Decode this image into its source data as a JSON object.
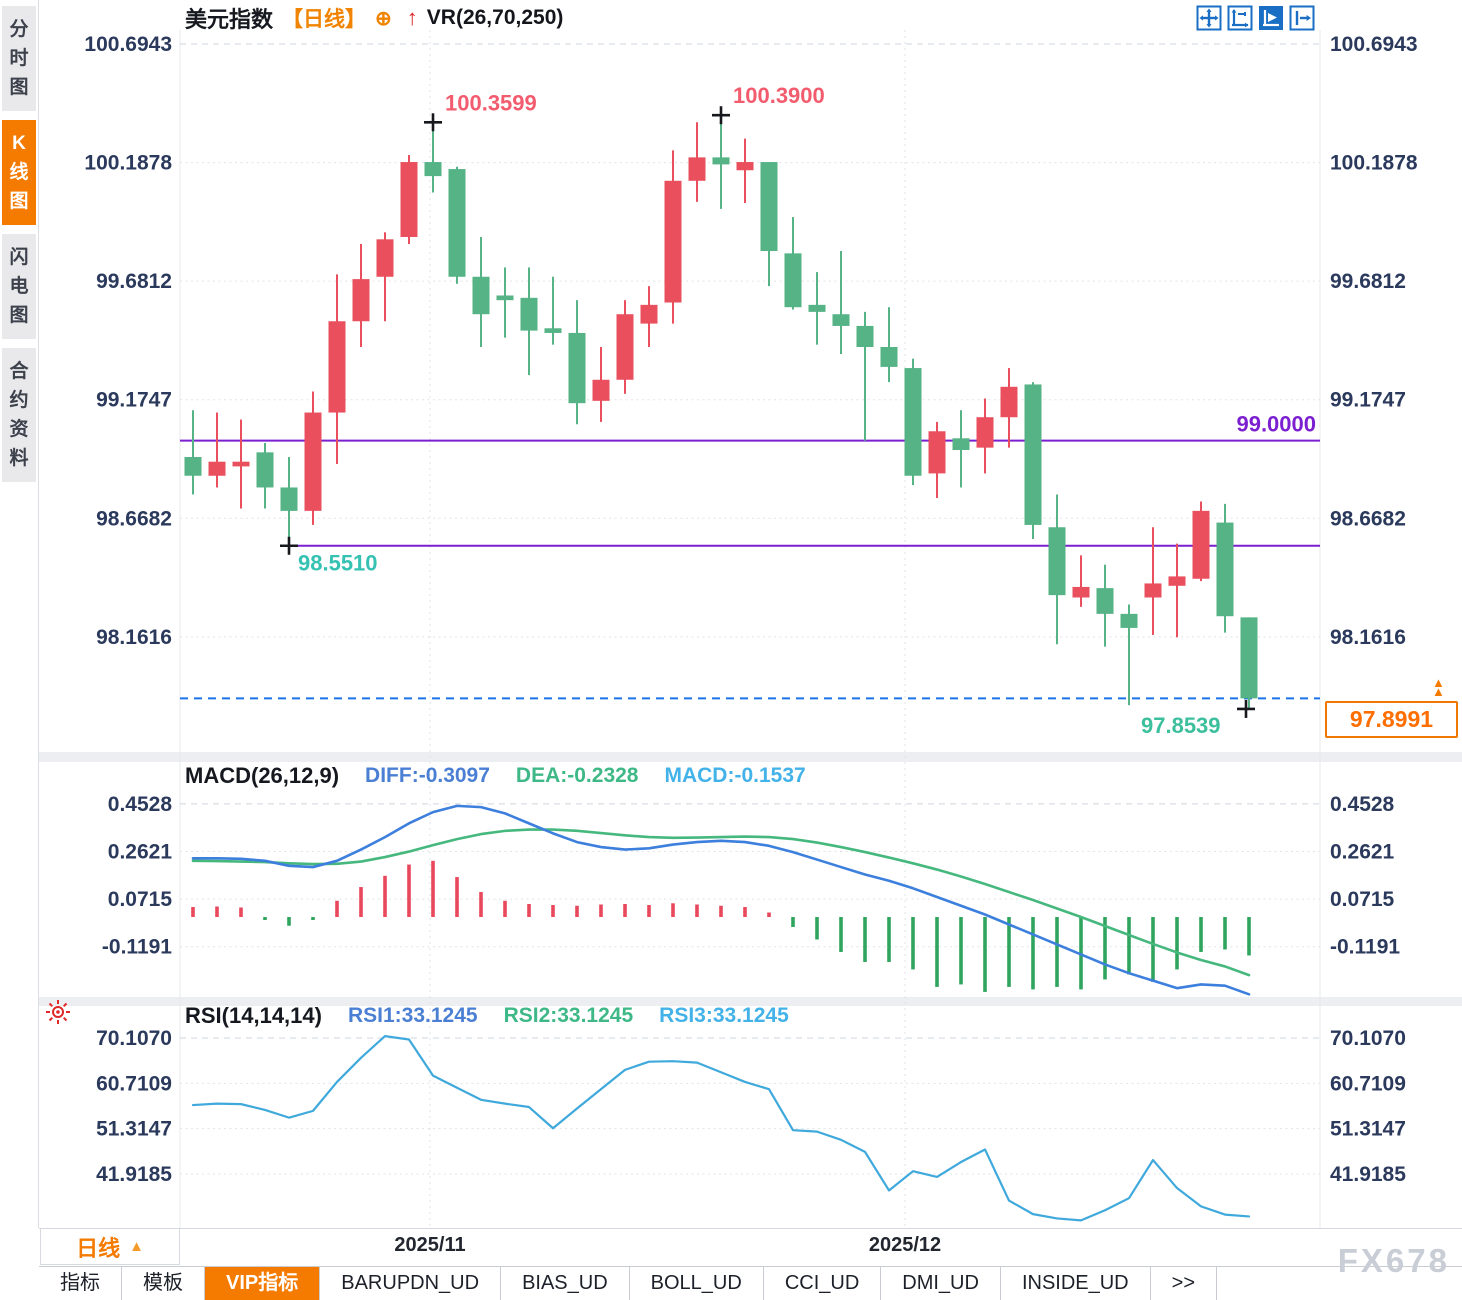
{
  "header": {
    "symbol": "美元指数",
    "period_tag": "【日线】",
    "target_icon": "⊕",
    "up_arrow_icon": "↑",
    "overlay_indicator": "VR(26,70,250)"
  },
  "toolbar": {
    "icons": [
      {
        "name": "pan-crosshair-icon",
        "active": false
      },
      {
        "name": "axis-range-icon",
        "active": false
      },
      {
        "name": "axis-play-icon",
        "active": true
      },
      {
        "name": "goto-latest-icon",
        "active": false
      }
    ]
  },
  "sidebar": {
    "items": [
      {
        "label": "分时图",
        "active": false
      },
      {
        "label": "K线图",
        "active": true
      },
      {
        "label": "闪电图",
        "active": false
      },
      {
        "label": "合约资料",
        "active": false
      }
    ]
  },
  "main_chart": {
    "y_axis": [
      "100.6943",
      "100.1878",
      "99.6812",
      "99.1747",
      "98.6682",
      "98.1616"
    ],
    "annotations": {
      "swing_high_1": "100.3599",
      "swing_high_2": "100.3900",
      "hline_price": "99.0000",
      "support_label": "98.5510",
      "swing_low": "97.8539",
      "current_price": "97.8991"
    }
  },
  "macd_panel": {
    "label": "MACD(26,12,9)",
    "diff_label": "DIFF:-0.3097",
    "dea_label": "DEA:-0.2328",
    "macd_label": "MACD:-0.1537",
    "y_axis": [
      "0.4528",
      "0.2621",
      "0.0715",
      "-0.1191"
    ]
  },
  "rsi_panel": {
    "label": "RSI(14,14,14)",
    "rsi1_label": "RSI1:33.1245",
    "rsi2_label": "RSI2:33.1245",
    "rsi3_label": "RSI3:33.1245",
    "y_axis": [
      "70.1070",
      "60.7109",
      "51.3147",
      "41.9185"
    ]
  },
  "x_axis": {
    "labels": [
      {
        "text": "2025/11",
        "x": 430
      },
      {
        "text": "2025/12",
        "x": 905
      }
    ]
  },
  "period_button": {
    "label": "日线",
    "arrow": "▲"
  },
  "bottom_tabs": [
    {
      "label": "指标",
      "active": false
    },
    {
      "label": "模板",
      "active": false
    },
    {
      "label": "VIP指标",
      "active": true
    },
    {
      "label": "BARUPDN_UD",
      "active": false
    },
    {
      "label": "BIAS_UD",
      "active": false
    },
    {
      "label": "BOLL_UD",
      "active": false
    },
    {
      "label": "CCI_UD",
      "active": false
    },
    {
      "label": "DMI_UD",
      "active": false
    },
    {
      "label": "INSIDE_UD",
      "active": false
    },
    {
      "label": ">>",
      "active": false
    }
  ],
  "watermark": "FX678",
  "colors": {
    "up": "#ea4f5e",
    "down": "#55b386",
    "hist_up": "#e8485c",
    "hist_down": "#2fa45e",
    "purple_line": "#7b1fd0",
    "current_line": "#1a73e8",
    "accent_orange": "#f57a00",
    "diff_blue": "#3c7fdd",
    "dea_green": "#46b87e",
    "rsi_blue": "#3fa9dc",
    "high_label": "#f25c6e",
    "low_label": "#35c2b2",
    "axis_text": "#2b3a5c",
    "toolbar_blue": "#1a6fc4"
  },
  "chart_data": [
    {
      "type": "candlestick",
      "title": "美元指数 日线",
      "x_labels": [
        "2025/11",
        "2025/12"
      ],
      "ylim": [
        97.75,
        100.75
      ],
      "hlines": [
        99.0,
        98.551
      ],
      "current_price": 97.8991,
      "swing_high_1": 100.3599,
      "swing_high_2": 100.39,
      "swing_low": 97.8539,
      "markers": [
        {
          "candle": 10,
          "at": "high"
        },
        {
          "candle": 22,
          "at": "high"
        },
        {
          "candle": 4,
          "at": "low"
        },
        {
          "candle": 44,
          "at": "low"
        }
      ],
      "ohlc": [
        [
          98.93,
          99.13,
          98.77,
          98.85
        ],
        [
          98.85,
          99.12,
          98.8,
          98.91
        ],
        [
          98.89,
          99.09,
          98.71,
          98.91
        ],
        [
          98.95,
          98.99,
          98.71,
          98.8
        ],
        [
          98.8,
          98.93,
          98.551,
          98.7
        ],
        [
          98.7,
          99.21,
          98.64,
          99.12
        ],
        [
          99.12,
          99.71,
          98.9,
          99.51
        ],
        [
          99.51,
          99.84,
          99.4,
          99.69
        ],
        [
          99.7,
          99.89,
          99.51,
          99.86
        ],
        [
          99.87,
          100.22,
          99.84,
          100.19
        ],
        [
          100.19,
          100.3599,
          100.06,
          100.13
        ],
        [
          100.16,
          100.17,
          99.67,
          99.7
        ],
        [
          99.7,
          99.87,
          99.4,
          99.54
        ],
        [
          99.62,
          99.74,
          99.44,
          99.6
        ],
        [
          99.61,
          99.74,
          99.28,
          99.47
        ],
        [
          99.48,
          99.7,
          99.41,
          99.46
        ],
        [
          99.46,
          99.6,
          99.07,
          99.16
        ],
        [
          99.17,
          99.4,
          99.08,
          99.26
        ],
        [
          99.26,
          99.6,
          99.2,
          99.54
        ],
        [
          99.5,
          99.66,
          99.4,
          99.58
        ],
        [
          99.59,
          100.24,
          99.5,
          100.11
        ],
        [
          100.11,
          100.36,
          100.02,
          100.21
        ],
        [
          100.21,
          100.39,
          99.99,
          100.18
        ],
        [
          100.155,
          100.29,
          100.015,
          100.19
        ],
        [
          100.19,
          100.19,
          99.66,
          99.81
        ],
        [
          99.8,
          99.955,
          99.56,
          99.57
        ],
        [
          99.58,
          99.72,
          99.41,
          99.55
        ],
        [
          99.54,
          99.81,
          99.37,
          99.49
        ],
        [
          99.49,
          99.55,
          99.0,
          99.4
        ],
        [
          99.4,
          99.57,
          99.25,
          99.315
        ],
        [
          99.31,
          99.35,
          98.81,
          98.85
        ],
        [
          98.86,
          99.08,
          98.755,
          99.04
        ],
        [
          99.01,
          99.13,
          98.8,
          98.96
        ],
        [
          98.97,
          99.18,
          98.86,
          99.1
        ],
        [
          99.1,
          99.31,
          98.97,
          99.23
        ],
        [
          99.24,
          99.25,
          98.58,
          98.64
        ],
        [
          98.63,
          98.77,
          98.13,
          98.34
        ],
        [
          98.33,
          98.51,
          98.29,
          98.375
        ],
        [
          98.37,
          98.47,
          98.12,
          98.26
        ],
        [
          98.26,
          98.3,
          97.87,
          98.2
        ],
        [
          98.33,
          98.63,
          98.17,
          98.39
        ],
        [
          98.38,
          98.56,
          98.16,
          98.42
        ],
        [
          98.41,
          98.74,
          98.4,
          98.7
        ],
        [
          98.65,
          98.73,
          98.18,
          98.25
        ],
        [
          98.245,
          98.245,
          97.8539,
          97.8991
        ]
      ]
    },
    {
      "type": "bar+line",
      "name": "MACD(26,12,9)",
      "ylim": [
        -0.35,
        0.47
      ],
      "diff": [
        0.235,
        0.235,
        0.233,
        0.225,
        0.205,
        0.2,
        0.225,
        0.27,
        0.32,
        0.375,
        0.42,
        0.445,
        0.44,
        0.415,
        0.375,
        0.335,
        0.3,
        0.28,
        0.27,
        0.275,
        0.29,
        0.3,
        0.305,
        0.3,
        0.285,
        0.26,
        0.23,
        0.2,
        0.17,
        0.145,
        0.115,
        0.08,
        0.045,
        0.01,
        -0.03,
        -0.07,
        -0.11,
        -0.15,
        -0.19,
        -0.225,
        -0.255,
        -0.285,
        -0.27,
        -0.275,
        -0.3097
      ],
      "dea": [
        0.225,
        0.224,
        0.222,
        0.22,
        0.215,
        0.212,
        0.213,
        0.222,
        0.24,
        0.262,
        0.288,
        0.312,
        0.332,
        0.345,
        0.35,
        0.35,
        0.345,
        0.336,
        0.327,
        0.32,
        0.317,
        0.318,
        0.32,
        0.322,
        0.32,
        0.312,
        0.298,
        0.28,
        0.26,
        0.238,
        0.215,
        0.19,
        0.162,
        0.132,
        0.1,
        0.068,
        0.034,
        0.0,
        -0.036,
        -0.072,
        -0.108,
        -0.142,
        -0.172,
        -0.198,
        -0.2328
      ],
      "hist": [
        0.04,
        0.042,
        0.038,
        -0.012,
        -0.035,
        -0.012,
        0.065,
        0.12,
        0.165,
        0.21,
        0.225,
        0.16,
        0.1,
        0.065,
        0.052,
        0.048,
        0.045,
        0.05,
        0.052,
        0.048,
        0.055,
        0.05,
        0.045,
        0.04,
        0.018,
        -0.04,
        -0.09,
        -0.14,
        -0.18,
        -0.18,
        -0.21,
        -0.28,
        -0.27,
        -0.3,
        -0.28,
        -0.29,
        -0.28,
        -0.29,
        -0.25,
        -0.23,
        -0.26,
        -0.21,
        -0.14,
        -0.13,
        -0.154
      ]
    },
    {
      "type": "line",
      "name": "RSI(14,14,14)",
      "ylim": [
        28,
        72
      ],
      "rsi": [
        56.2,
        56.5,
        56.4,
        55.2,
        53.6,
        55.0,
        61.0,
        66.0,
        70.5,
        69.8,
        62.3,
        59.8,
        57.3,
        56.5,
        55.8,
        51.4,
        55.5,
        59.5,
        63.5,
        65.2,
        65.3,
        65.0,
        63.0,
        61.0,
        59.5,
        51.0,
        50.7,
        49.0,
        46.5,
        38.5,
        42.5,
        41.3,
        44.4,
        47.0,
        36.4,
        33.6,
        32.7,
        32.3,
        34.4,
        36.9,
        44.8,
        39.0,
        35.2,
        33.5,
        33.12
      ]
    }
  ]
}
